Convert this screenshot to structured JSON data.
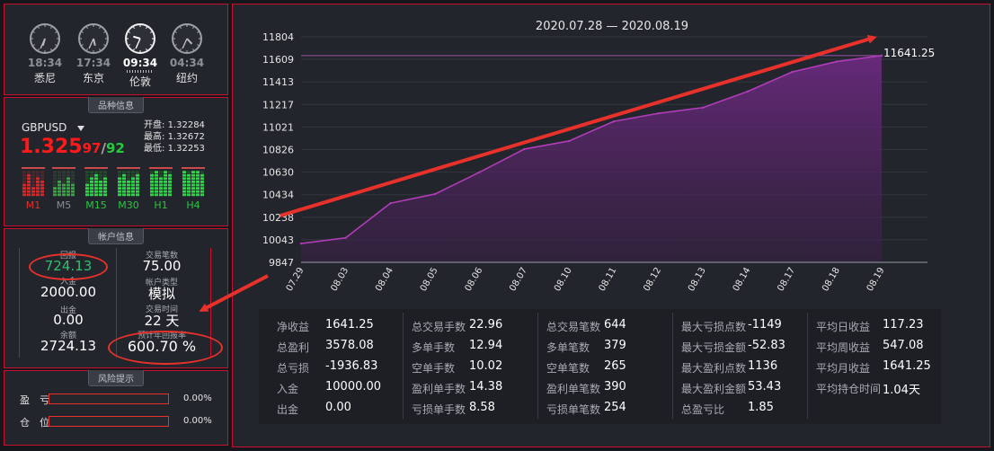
{
  "clocks": [
    {
      "time": "18:34",
      "city": "悉尼",
      "active": false
    },
    {
      "time": "17:34",
      "city": "东京",
      "active": false
    },
    {
      "time": "09:34",
      "city": "伦敦",
      "active": true
    },
    {
      "time": "04:34",
      "city": "纽约",
      "active": false
    }
  ],
  "symbol_panel": {
    "title": "品种信息",
    "symbol": "GBPUSD",
    "price_main": "1.325",
    "price_bid": "97",
    "price_sep": "/",
    "price_ask": "92",
    "open_label": "开盘:",
    "open": "1.32284",
    "high_label": "最高:",
    "high": "1.32672",
    "low_label": "最低:",
    "low": "1.32253",
    "timeframes": [
      {
        "label": "M1",
        "color": "#e03131"
      },
      {
        "label": "M5",
        "color": "#8a8d94"
      },
      {
        "label": "M15",
        "color": "#27c93f"
      },
      {
        "label": "M30",
        "color": "#27c93f"
      },
      {
        "label": "H1",
        "color": "#27c93f"
      },
      {
        "label": "H4",
        "color": "#27c93f"
      }
    ]
  },
  "account_panel": {
    "title": "帐户信息",
    "left": [
      {
        "label": "回报",
        "value": "724.13",
        "color": "#2fbf71"
      },
      {
        "label": "入金",
        "value": "2000.00",
        "color": "#ffffff"
      },
      {
        "label": "出金",
        "value": "0.00",
        "color": "#ffffff"
      },
      {
        "label": "余额",
        "value": "2724.13",
        "color": "#ffffff"
      }
    ],
    "right": [
      {
        "label": "交易笔数",
        "value": "75.00"
      },
      {
        "label": "帐户类型",
        "value": "模拟"
      },
      {
        "label": "交易时间",
        "value": "22 天"
      },
      {
        "label": "预计年回报率",
        "value": "600.70 %"
      }
    ]
  },
  "risk_panel": {
    "title": "风险提示",
    "rows": [
      {
        "label": "盈　亏",
        "pct": "0.00%",
        "fill": 0
      },
      {
        "label": "仓　位",
        "pct": "0.00%",
        "fill": 0
      }
    ]
  },
  "chart_data": {
    "type": "area",
    "title": "2020.07.28 — 2020.08.19",
    "x": [
      "07.29",
      "08.03",
      "08.04",
      "08.05",
      "08.06",
      "08.07",
      "08.10",
      "08.11",
      "08.12",
      "08.13",
      "08.14",
      "08.17",
      "08.18",
      "08.19"
    ],
    "values": [
      10010,
      10060,
      10360,
      10440,
      10630,
      10830,
      10900,
      11070,
      11140,
      11190,
      11330,
      11500,
      11590,
      11641.25
    ],
    "ylim": [
      9847,
      11804
    ],
    "yticks": [
      9847,
      10043,
      10238,
      10434,
      10630,
      10826,
      11021,
      11217,
      11413,
      11609,
      11804
    ],
    "last_label": "11641.25",
    "ref_line": 11641.25,
    "colors": {
      "line": "#b03cb8",
      "fill": "#5e2470",
      "ref": "#9b55a6"
    }
  },
  "stats": [
    [
      {
        "label": "净收益",
        "value": "1641.25"
      },
      {
        "label": "总盈利",
        "value": "3578.08"
      },
      {
        "label": "总亏损",
        "value": "-1936.83"
      },
      {
        "label": "入金",
        "value": "10000.00"
      },
      {
        "label": "出金",
        "value": "0.00"
      }
    ],
    [
      {
        "label": "总交易手数",
        "value": "22.96"
      },
      {
        "label": "多单手数",
        "value": "12.94"
      },
      {
        "label": "空单手数",
        "value": "10.02"
      },
      {
        "label": "盈利单手数",
        "value": "14.38"
      },
      {
        "label": "亏损单手数",
        "value": "8.58"
      }
    ],
    [
      {
        "label": "总交易笔数",
        "value": "644"
      },
      {
        "label": "多单笔数",
        "value": "379"
      },
      {
        "label": "空单笔数",
        "value": "265"
      },
      {
        "label": "盈利单笔数",
        "value": "390"
      },
      {
        "label": "亏损单笔数",
        "value": "254"
      }
    ],
    [
      {
        "label": "最大亏损点数",
        "value": "-1149"
      },
      {
        "label": "最大亏损金额",
        "value": "-52.83"
      },
      {
        "label": "最大盈利点数",
        "value": "1136"
      },
      {
        "label": "最大盈利金额",
        "value": "53.43"
      },
      {
        "label": "总盈亏比",
        "value": "1.85"
      }
    ],
    [
      {
        "label": "平均日收益",
        "value": "117.23"
      },
      {
        "label": "平均周收益",
        "value": "547.08"
      },
      {
        "label": "平均月收益",
        "value": "1641.25"
      },
      {
        "label": "平均持仓时间",
        "value": "1.04天"
      }
    ]
  ]
}
